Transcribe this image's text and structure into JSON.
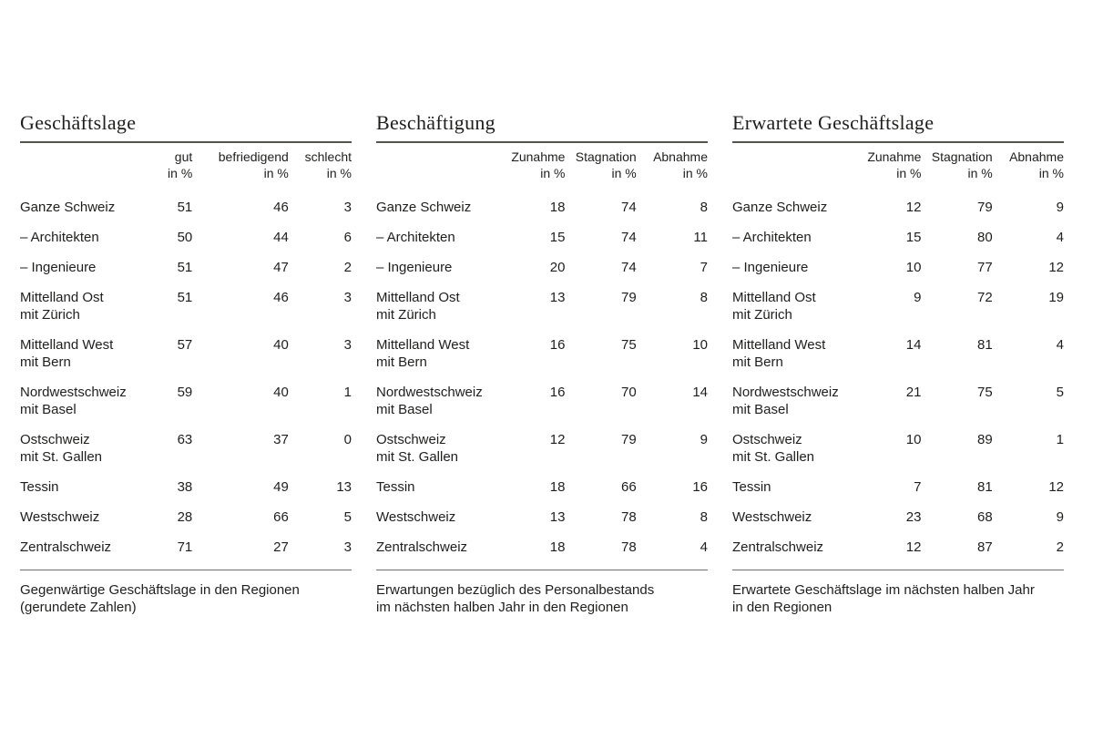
{
  "page": {
    "background": "#ffffff",
    "text_color": "#1e1e1c",
    "rule_color_strong": "#54534f",
    "rule_color_light": "#6f6e6a"
  },
  "tables": [
    {
      "title": "Geschäftslage",
      "columns": [
        {
          "label": "gut",
          "unit": "in %"
        },
        {
          "label": "befriedigend",
          "unit": "in %"
        },
        {
          "label": "schlecht",
          "unit": "in %"
        }
      ],
      "rows": [
        {
          "label": "Ganze Schweiz",
          "values": [
            51,
            46,
            3
          ]
        },
        {
          "label": "– Architekten",
          "values": [
            50,
            44,
            6
          ]
        },
        {
          "label": "– Ingenieure",
          "values": [
            51,
            47,
            2
          ]
        },
        {
          "label": "Mittelland Ost",
          "sublabel": "mit Zürich",
          "values": [
            51,
            46,
            3
          ]
        },
        {
          "label": "Mittelland West",
          "sublabel": "mit Bern",
          "values": [
            57,
            40,
            3
          ]
        },
        {
          "label": "Nordwestschweiz",
          "sublabel": "mit Basel",
          "values": [
            59,
            40,
            1
          ]
        },
        {
          "label": "Ostschweiz",
          "sublabel": "mit St. Gallen",
          "values": [
            63,
            37,
            0
          ]
        },
        {
          "label": "Tessin",
          "values": [
            38,
            49,
            13
          ]
        },
        {
          "label": "Westschweiz",
          "values": [
            28,
            66,
            5
          ]
        },
        {
          "label": "Zentralschweiz",
          "values": [
            71,
            27,
            3
          ]
        }
      ],
      "caption": [
        "Gegenwärtige Geschäftslage in den Regionen",
        "(gerundete Zahlen)"
      ]
    },
    {
      "title": "Beschäftigung",
      "columns": [
        {
          "label": "Zunahme",
          "unit": "in %"
        },
        {
          "label": "Stagnation",
          "unit": "in %"
        },
        {
          "label": "Abnahme",
          "unit": "in %"
        }
      ],
      "rows": [
        {
          "label": "Ganze Schweiz",
          "values": [
            18,
            74,
            8
          ]
        },
        {
          "label": "– Architekten",
          "values": [
            15,
            74,
            11
          ]
        },
        {
          "label": "– Ingenieure",
          "values": [
            20,
            74,
            7
          ]
        },
        {
          "label": "Mittelland Ost",
          "sublabel": "mit Zürich",
          "values": [
            13,
            79,
            8
          ]
        },
        {
          "label": "Mittelland West",
          "sublabel": "mit Bern",
          "values": [
            16,
            75,
            10
          ]
        },
        {
          "label": "Nordwestschweiz",
          "sublabel": "mit Basel",
          "values": [
            16,
            70,
            14
          ]
        },
        {
          "label": "Ostschweiz",
          "sublabel": "mit St. Gallen",
          "values": [
            12,
            79,
            9
          ]
        },
        {
          "label": "Tessin",
          "values": [
            18,
            66,
            16
          ]
        },
        {
          "label": "Westschweiz",
          "values": [
            13,
            78,
            8
          ]
        },
        {
          "label": "Zentralschweiz",
          "values": [
            18,
            78,
            4
          ]
        }
      ],
      "caption": [
        "Erwartungen bezüglich des Personalbestands",
        "im nächsten halben Jahr in den Regionen"
      ]
    },
    {
      "title": "Erwartete Geschäftslage",
      "columns": [
        {
          "label": "Zunahme",
          "unit": "in %"
        },
        {
          "label": "Stagnation",
          "unit": "in %"
        },
        {
          "label": "Abnahme",
          "unit": "in %"
        }
      ],
      "rows": [
        {
          "label": "Ganze Schweiz",
          "values": [
            12,
            79,
            9
          ]
        },
        {
          "label": "– Architekten",
          "values": [
            15,
            80,
            4
          ]
        },
        {
          "label": "– Ingenieure",
          "values": [
            10,
            77,
            12
          ]
        },
        {
          "label": "Mittelland Ost",
          "sublabel": "mit Zürich",
          "values": [
            9,
            72,
            19
          ]
        },
        {
          "label": "Mittelland West",
          "sublabel": "mit Bern",
          "values": [
            14,
            81,
            4
          ]
        },
        {
          "label": "Nordwestschweiz",
          "sublabel": "mit Basel",
          "values": [
            21,
            75,
            5
          ]
        },
        {
          "label": "Ostschweiz",
          "sublabel": "mit St. Gallen",
          "values": [
            10,
            89,
            1
          ]
        },
        {
          "label": "Tessin",
          "values": [
            7,
            81,
            12
          ]
        },
        {
          "label": "Westschweiz",
          "values": [
            23,
            68,
            9
          ]
        },
        {
          "label": "Zentralschweiz",
          "values": [
            12,
            87,
            2
          ]
        }
      ],
      "caption": [
        "Erwartete Geschäftslage im nächsten halben Jahr",
        "in den Regionen"
      ]
    }
  ]
}
